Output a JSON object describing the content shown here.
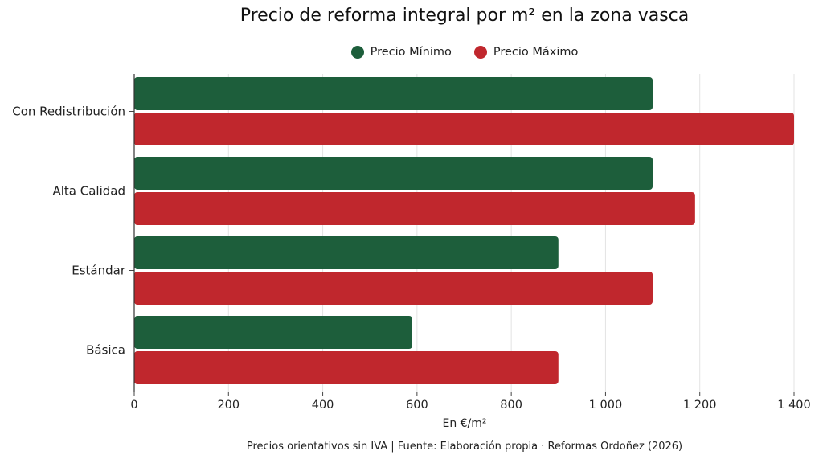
{
  "chart_data": {
    "type": "bar",
    "orientation": "horizontal",
    "title": "Precio de reforma integral por m² en la zona vasca",
    "xlabel": "En €/m²",
    "ylabel": "",
    "categories": [
      "Con Redistribución",
      "Alta Calidad",
      "Estándar",
      "Básica"
    ],
    "series": [
      {
        "name": "Precio Mínimo",
        "color": "#1d5e3b",
        "values": [
          1100,
          1100,
          900,
          590
        ]
      },
      {
        "name": "Precio Máximo",
        "color": "#c0272d",
        "values": [
          1400,
          1190,
          1100,
          900
        ]
      }
    ],
    "xlim": [
      0,
      1400
    ],
    "xticks": [
      0,
      200,
      400,
      600,
      800,
      1000,
      1200,
      1400
    ],
    "xtick_labels": [
      "0",
      "200",
      "400",
      "600",
      "800",
      "1 000",
      "1 200",
      "1 400"
    ],
    "grid": true,
    "legend_position": "top"
  },
  "footer": "Precios orientativos sin IVA | Fuente: Elaboración propia · Reformas Ordoñez (2026)"
}
